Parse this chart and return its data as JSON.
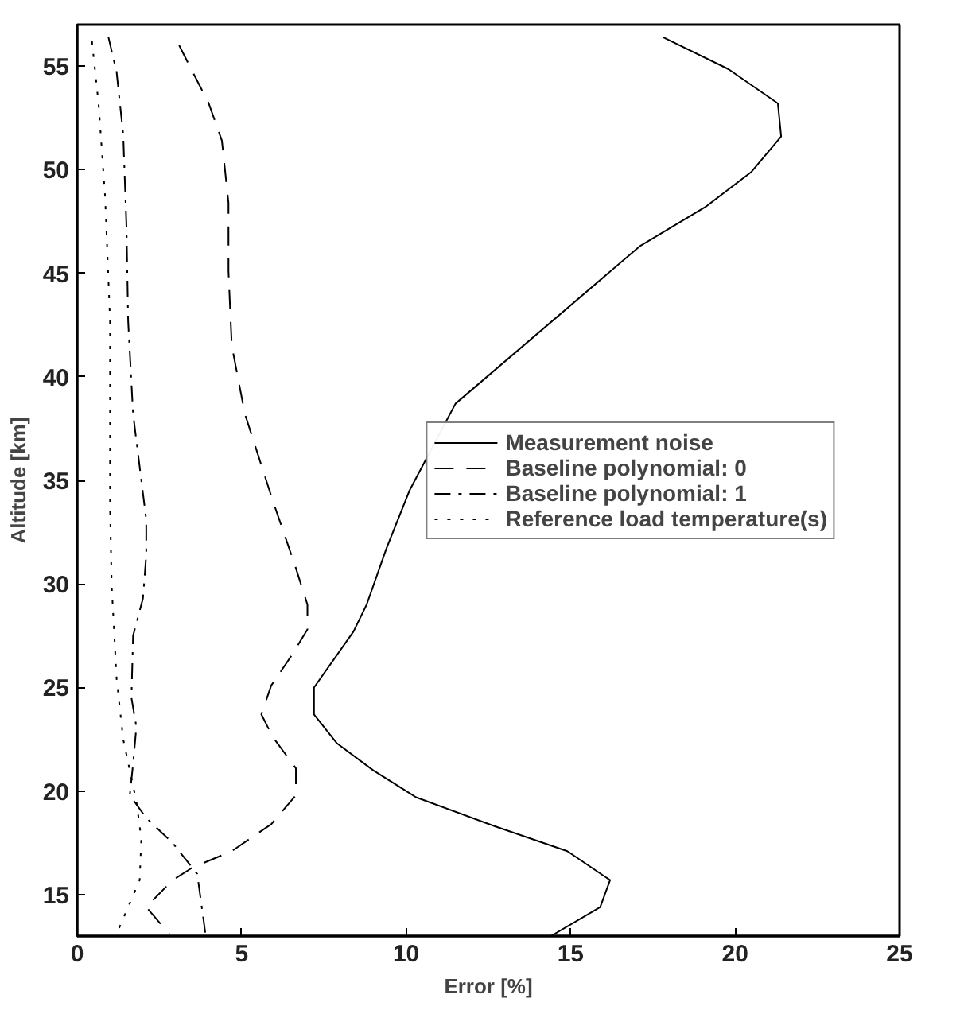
{
  "chart_data": {
    "type": "line",
    "xlabel": "Error [%]",
    "ylabel": "Altitude [km]",
    "xlim": [
      0,
      25
    ],
    "ylim": [
      13,
      57
    ],
    "xticks": [
      0,
      5,
      10,
      15,
      20,
      25
    ],
    "yticks": [
      15,
      20,
      25,
      30,
      35,
      40,
      45,
      50,
      55
    ],
    "grid": false,
    "legend": "right",
    "marker": "none",
    "series": [
      {
        "name": "Measurement noise",
        "color": "#000000",
        "line_style": "solid",
        "x": [
          17.8,
          19.8,
          21.3,
          21.4,
          20.5,
          19.1,
          17.1,
          11.5,
          10.1,
          9.4,
          8.8,
          8.4,
          7.2,
          7.2,
          7.9,
          9.0,
          10.3,
          12.7,
          14.9,
          16.2,
          15.9,
          14.4
        ],
        "values": [
          56.4,
          54.85,
          53.2,
          51.6,
          49.9,
          48.2,
          46.3,
          38.7,
          34.5,
          31.7,
          29.0,
          27.7,
          25.0,
          23.7,
          22.3,
          21.0,
          19.7,
          18.3,
          17.1,
          15.7,
          14.4,
          13.0
        ]
      },
      {
        "name": "Baseline polynomial: 0",
        "color": "#000000",
        "line_style": "dashed",
        "x": [
          3.1,
          4.0,
          4.4,
          4.6,
          4.6,
          4.7,
          5.1,
          5.95,
          6.6,
          7.0,
          7.0,
          6.5,
          5.9,
          5.6,
          5.95,
          6.65,
          6.65,
          5.9,
          4.7,
          3.5,
          2.9,
          2.1,
          2.8
        ],
        "values": [
          56.0,
          53.2,
          51.4,
          48.4,
          45.1,
          41.5,
          38.2,
          34.0,
          31.0,
          29.0,
          27.8,
          26.5,
          25.1,
          23.7,
          22.6,
          21.1,
          19.8,
          18.4,
          17.1,
          16.3,
          15.7,
          14.4,
          13.1
        ]
      },
      {
        "name": "Baseline polynomial: 1",
        "color": "#000000",
        "line_style": "dashdot",
        "x": [
          0.95,
          1.2,
          1.4,
          1.5,
          1.55,
          1.7,
          2.1,
          2.1,
          2.0,
          1.7,
          1.65,
          1.8,
          1.7,
          1.6,
          2.1,
          2.9,
          3.65,
          3.9
        ],
        "values": [
          56.4,
          54.7,
          51.7,
          47.2,
          42.7,
          38.2,
          33.1,
          31.4,
          29.3,
          27.5,
          24.5,
          23.1,
          21.3,
          19.8,
          18.7,
          17.5,
          16.0,
          13.1
        ]
      },
      {
        "name": "Reference load temperature(s)",
        "color": "#000000",
        "line_style": "dotted",
        "x": [
          0.45,
          0.65,
          0.85,
          1.0,
          1.0,
          1.05,
          1.2,
          1.4,
          1.8,
          1.95,
          1.9,
          1.55,
          1.2
        ],
        "values": [
          56.2,
          53.2,
          48.7,
          42.7,
          33.7,
          29.9,
          25.4,
          22.5,
          19.5,
          17.7,
          15.7,
          14.4,
          13.1
        ]
      }
    ]
  }
}
